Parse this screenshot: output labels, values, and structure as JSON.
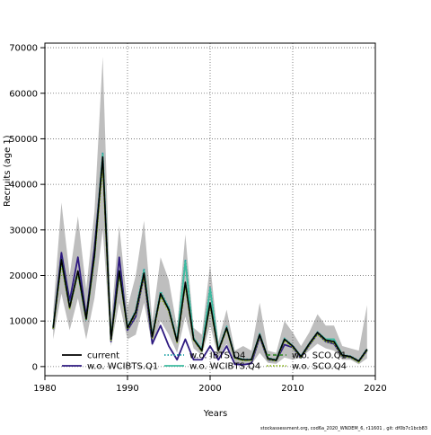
{
  "chart_data": {
    "type": "line",
    "xlabel": "Years",
    "ylabel": "Recruits (age 1)",
    "xlim": [
      1980,
      2020
    ],
    "ylim": [
      -2000,
      71000
    ],
    "x_ticks": [
      1980,
      1990,
      2000,
      2010,
      2020
    ],
    "y_ticks": [
      0,
      10000,
      20000,
      30000,
      40000,
      50000,
      60000,
      70000
    ],
    "grid": true,
    "legend_position": "bottom-left",
    "x": [
      1981,
      1982,
      1983,
      1984,
      1985,
      1986,
      1987,
      1988,
      1989,
      1990,
      1991,
      1992,
      1993,
      1994,
      1995,
      1996,
      1997,
      1998,
      1999,
      2000,
      2001,
      2002,
      2003,
      2004,
      2005,
      2006,
      2007,
      2008,
      2009,
      2010,
      2011,
      2012,
      2013,
      2014,
      2015,
      2016,
      2017,
      2018,
      2019
    ],
    "band": {
      "name": "",
      "color": "#bebebe",
      "lower": [
        6000,
        16000,
        8000,
        15000,
        6000,
        15000,
        30000,
        4500,
        14000,
        6000,
        7000,
        14000,
        4500,
        10000,
        7000,
        3000,
        11000,
        4000,
        2500,
        9000,
        2000,
        5000,
        1000,
        500,
        500,
        3000,
        800,
        600,
        2000,
        1500,
        2000,
        3500,
        5000,
        4000,
        3500,
        1500,
        1500,
        500,
        1800
      ],
      "upper": [
        12000,
        36000,
        20000,
        33000,
        17000,
        34000,
        68000,
        10000,
        31000,
        13000,
        20000,
        32000,
        10000,
        24000,
        19000,
        8500,
        29000,
        8500,
        7000,
        22500,
        5500,
        12500,
        3500,
        4500,
        3500,
        14000,
        3500,
        3000,
        10000,
        7500,
        4500,
        7500,
        11500,
        9000,
        9000,
        4500,
        4000,
        3500,
        13500
      ]
    },
    "series": [
      {
        "name": "current",
        "color": "#000000",
        "dash": "solid",
        "values": [
          8500,
          23500,
          13000,
          21000,
          10500,
          24500,
          46000,
          6000,
          21000,
          8500,
          12000,
          20500,
          6500,
          16000,
          12500,
          5500,
          18500,
          6000,
          3500,
          14000,
          3500,
          8500,
          2000,
          1500,
          1500,
          7000,
          1800,
          1400,
          6000,
          4500,
          2200,
          5000,
          7500,
          5800,
          5500,
          2500,
          2200,
          1200,
          3800
        ]
      },
      {
        "name": "w.o. WCIBTS.Q1",
        "color": "#2e1a80",
        "dash": "solid",
        "values": [
          8200,
          25000,
          14500,
          24000,
          11000,
          26000,
          46000,
          5500,
          24000,
          8000,
          11000,
          20000,
          5000,
          9000,
          4500,
          1500,
          6000,
          1500,
          1500,
          4500,
          1500,
          4500,
          500,
          400,
          700,
          6500,
          1500,
          1300,
          4800,
          4200,
          1900,
          4700,
          7200,
          5500,
          5000,
          2300,
          2000,
          1100,
          3500
        ]
      },
      {
        "name": "w.o. IBTS.Q4",
        "color": "#1fa3a6",
        "dash": "dotted",
        "values": [
          8800,
          23000,
          13200,
          20500,
          10300,
          24000,
          47000,
          6200,
          20500,
          8800,
          12300,
          21500,
          6800,
          16500,
          13000,
          5800,
          23500,
          6300,
          3800,
          17500,
          3800,
          8800,
          2100,
          1600,
          1600,
          7200,
          1900,
          1500,
          6200,
          4600,
          2300,
          5100,
          7600,
          6000,
          5800,
          2600,
          2300,
          1300,
          3900
        ]
      },
      {
        "name": "w.o. WCIBTS.Q4",
        "color": "#3dbba0",
        "dash": "solid",
        "values": [
          8600,
          23500,
          13100,
          20800,
          10400,
          24300,
          46500,
          6100,
          21000,
          8600,
          12100,
          21000,
          6600,
          16200,
          12800,
          5600,
          23000,
          6200,
          3700,
          17000,
          3600,
          8600,
          2000,
          1500,
          1500,
          7100,
          1800,
          1400,
          6100,
          4500,
          2200,
          5000,
          7500,
          6000,
          6000,
          2500,
          2200,
          1200,
          3800
        ]
      },
      {
        "name": "w.o. SCO.Q1",
        "color": "#3a8a30",
        "dash": "dashed",
        "values": [
          8400,
          23300,
          12900,
          20900,
          10400,
          24400,
          45500,
          5900,
          20800,
          8400,
          11900,
          20400,
          6400,
          15800,
          12400,
          5400,
          18300,
          5900,
          3400,
          13800,
          3400,
          8400,
          1900,
          1400,
          1400,
          6900,
          1700,
          1300,
          5900,
          4400,
          2100,
          4900,
          7400,
          5700,
          5400,
          2400,
          2100,
          1100,
          3700
        ]
      },
      {
        "name": "w.o. SCO.Q4",
        "color": "#8fba22",
        "dash": "dotted",
        "values": [
          8300,
          22500,
          12700,
          20400,
          10200,
          23800,
          44000,
          5800,
          20200,
          8200,
          11600,
          19800,
          6300,
          15300,
          12100,
          5300,
          17800,
          5800,
          3300,
          13500,
          3300,
          8200,
          1800,
          1300,
          1300,
          6700,
          1600,
          1200,
          5700,
          4200,
          2000,
          4700,
          7100,
          5500,
          5200,
          2300,
          2000,
          1000,
          3600
        ]
      }
    ],
    "legend": [
      {
        "series_index": 0,
        "label": "current"
      },
      {
        "series_index": 1,
        "label": "w.o. WCIBTS.Q1"
      },
      {
        "series_index": 2,
        "label": "w.o. IBTS.Q4"
      },
      {
        "series_index": 3,
        "label": "w.o. WCIBTS.Q4"
      },
      {
        "series_index": 4,
        "label": "w.o. SCO.Q1"
      },
      {
        "series_index": 5,
        "label": "w.o. SCO.Q4"
      }
    ]
  },
  "footer": {
    "text": "stockassessment.org, cod6a_2020_WNDEM_6, r11601 , git: df0b7c1bcb83"
  }
}
